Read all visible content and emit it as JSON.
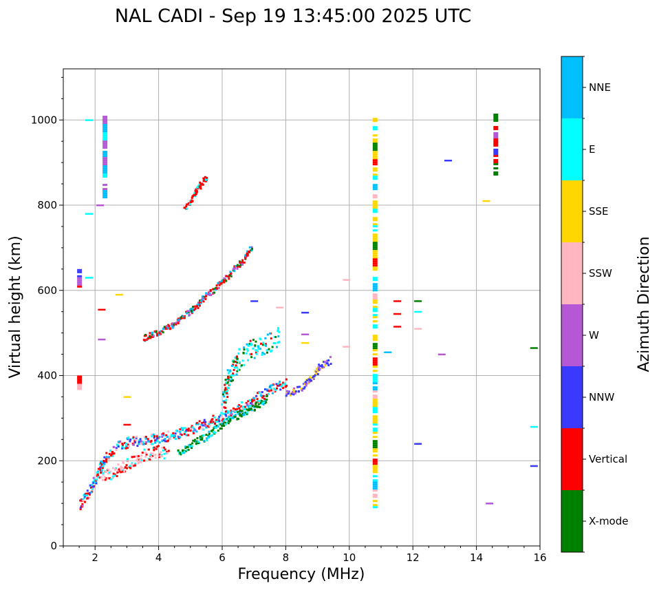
{
  "chart_data": {
    "type": "scatter",
    "title": "NAL CADI - Sep 19 13:45:00 2025 UTC",
    "xlabel": "Frequency (MHz)",
    "ylabel": "Virtual height (km)",
    "xlim": [
      1,
      16
    ],
    "ylim": [
      0,
      1120
    ],
    "grid": true,
    "x_ticks": [
      2,
      4,
      6,
      8,
      10,
      12,
      14,
      16
    ],
    "x_tick_labels": [
      "2",
      "4",
      "6",
      "8",
      "10",
      "12",
      "14",
      "16"
    ],
    "x_minor_step": 0.5,
    "y_ticks": [
      0,
      200,
      400,
      600,
      800,
      1000
    ],
    "y_tick_labels": [
      "0",
      "200",
      "400",
      "600",
      "800",
      "1000"
    ],
    "y_minor_step": 50,
    "colorbar": {
      "title": "Azimuth Direction",
      "categories": [
        {
          "name": "X-mode",
          "color": "#008000"
        },
        {
          "name": "Vertical",
          "color": "#ff0000"
        },
        {
          "name": "NNW",
          "color": "#3a3aff"
        },
        {
          "name": "W",
          "color": "#b458d6"
        },
        {
          "name": "SSW",
          "color": "#ffb6c1"
        },
        {
          "name": "SSE",
          "color": "#ffd700"
        },
        {
          "name": "E",
          "color": "#00ffff"
        },
        {
          "name": "NNE",
          "color": "#00bfff"
        }
      ]
    },
    "traces": [
      {
        "name": "F-layer O-mode trace",
        "kind": "curve",
        "points": [
          [
            1.5,
            100
          ],
          [
            1.6,
            110
          ],
          [
            1.8,
            130
          ],
          [
            2.0,
            160
          ],
          [
            2.2,
            195
          ],
          [
            2.4,
            215
          ],
          [
            2.7,
            235
          ],
          [
            3.0,
            245
          ],
          [
            3.5,
            250
          ],
          [
            4.0,
            255
          ],
          [
            4.5,
            262
          ],
          [
            5.0,
            275
          ],
          [
            5.3,
            285
          ],
          [
            5.6,
            295
          ],
          [
            6.0,
            305
          ],
          [
            6.5,
            325
          ],
          [
            7.0,
            345
          ],
          [
            7.5,
            370
          ],
          [
            8.0,
            385
          ]
        ],
        "colors": [
          "Vertical",
          "NNE",
          "E",
          "SSW",
          "NNW",
          "Vertical",
          "E",
          "Vertical",
          "NNE",
          "Vertical",
          "NNW",
          "W"
        ],
        "spread": 14
      },
      {
        "name": "F-layer X-mode trace",
        "kind": "curve",
        "points": [
          [
            4.6,
            220
          ],
          [
            5.0,
            240
          ],
          [
            5.5,
            260
          ],
          [
            6.0,
            290
          ],
          [
            6.5,
            310
          ],
          [
            7.0,
            330
          ],
          [
            7.4,
            350
          ]
        ],
        "colors": [
          "X-mode",
          "X-mode",
          "E",
          "X-mode",
          "NNE"
        ],
        "spread": 10
      },
      {
        "name": "Lower F echoes",
        "kind": "curve",
        "points": [
          [
            2.2,
            165
          ],
          [
            2.6,
            175
          ],
          [
            3.0,
            195
          ],
          [
            3.5,
            215
          ],
          [
            4.0,
            225
          ],
          [
            4.3,
            220
          ]
        ],
        "colors": [
          "SSW",
          "Vertical",
          "SSW",
          "Vertical",
          "E"
        ],
        "spread": 18
      },
      {
        "name": "Multi-hop trace",
        "kind": "curve",
        "points": [
          [
            3.5,
            490
          ],
          [
            4.0,
            505
          ],
          [
            4.5,
            525
          ],
          [
            5.0,
            555
          ],
          [
            5.5,
            590
          ],
          [
            5.8,
            610
          ],
          [
            6.0,
            625
          ],
          [
            6.5,
            660
          ],
          [
            6.8,
            690
          ],
          [
            6.9,
            705
          ]
        ],
        "colors": [
          "Vertical",
          "W",
          "Vertical",
          "NNE",
          "X-mode"
        ],
        "spread": 8
      },
      {
        "name": "Rising scatter",
        "kind": "curve",
        "points": [
          [
            6.0,
            340
          ],
          [
            6.2,
            400
          ],
          [
            6.5,
            440
          ],
          [
            7.0,
            470
          ],
          [
            7.5,
            480
          ],
          [
            7.8,
            500
          ]
        ],
        "colors": [
          "NNE",
          "E",
          "Vertical",
          "X-mode",
          "E"
        ],
        "spread": 30
      },
      {
        "name": "Upper echo trace",
        "kind": "curve",
        "points": [
          [
            4.8,
            795
          ],
          [
            5.0,
            810
          ],
          [
            5.2,
            840
          ],
          [
            5.5,
            870
          ]
        ],
        "colors": [
          "Vertical",
          "E",
          "Vertical"
        ],
        "spread": 6
      },
      {
        "name": "High-frequency tail",
        "kind": "curve",
        "points": [
          [
            8.0,
            360
          ],
          [
            8.5,
            375
          ],
          [
            8.8,
            395
          ],
          [
            9.0,
            420
          ],
          [
            9.4,
            440
          ]
        ],
        "colors": [
          "SSE",
          "W",
          "NNW",
          "NNW"
        ],
        "spread": 10
      },
      {
        "name": "10.8 MHz interference column",
        "kind": "column",
        "x": 10.8,
        "ymin": 90,
        "ymax": 1005,
        "colors": [
          "SSE",
          "E",
          "SSE",
          "X-mode",
          "SSE",
          "Vertical",
          "SSE",
          "E",
          "NNE",
          "SSW",
          "SSE",
          "E"
        ]
      },
      {
        "name": "14.6 MHz interference column",
        "kind": "column",
        "x": 14.6,
        "ymin": 870,
        "ymax": 1015,
        "colors": [
          "X-mode",
          "Vertical",
          "W",
          "Vertical",
          "NNW",
          "Vertical",
          "X-mode"
        ]
      },
      {
        "name": "2.3 MHz spread column",
        "kind": "column",
        "x": 2.3,
        "ymin": 820,
        "ymax": 1010,
        "colors": [
          "W",
          "NNE",
          "E",
          "W",
          "NNE"
        ]
      },
      {
        "name": "1.5 MHz low echoes",
        "kind": "column",
        "x": 1.5,
        "ymin": 370,
        "ymax": 400,
        "colors": [
          "Vertical",
          "SSW",
          "NNW"
        ]
      },
      {
        "name": "1.5 MHz high echoes",
        "kind": "column",
        "x": 1.5,
        "ymin": 605,
        "ymax": 650,
        "colors": [
          "NNW",
          "W",
          "Vertical"
        ]
      }
    ],
    "isolated_points": [
      {
        "x": 13.1,
        "y": 905,
        "color": "NNW"
      },
      {
        "x": 14.3,
        "y": 810,
        "color": "SSE"
      },
      {
        "x": 14.4,
        "y": 100,
        "color": "W"
      },
      {
        "x": 12.9,
        "y": 450,
        "color": "W"
      },
      {
        "x": 11.5,
        "y": 575,
        "color": "Vertical"
      },
      {
        "x": 11.5,
        "y": 545,
        "color": "Vertical"
      },
      {
        "x": 11.5,
        "y": 515,
        "color": "Vertical"
      },
      {
        "x": 12.15,
        "y": 575,
        "color": "X-mode"
      },
      {
        "x": 12.15,
        "y": 550,
        "color": "E"
      },
      {
        "x": 12.15,
        "y": 510,
        "color": "SSW"
      },
      {
        "x": 12.15,
        "y": 240,
        "color": "NNW"
      },
      {
        "x": 15.8,
        "y": 465,
        "color": "X-mode"
      },
      {
        "x": 15.8,
        "y": 280,
        "color": "E"
      },
      {
        "x": 15.8,
        "y": 188,
        "color": "NNW"
      },
      {
        "x": 11.2,
        "y": 455,
        "color": "NNE"
      },
      {
        "x": 9.9,
        "y": 625,
        "color": "SSW"
      },
      {
        "x": 9.9,
        "y": 468,
        "color": "SSW"
      },
      {
        "x": 8.6,
        "y": 548,
        "color": "NNW"
      },
      {
        "x": 8.6,
        "y": 497,
        "color": "W"
      },
      {
        "x": 8.6,
        "y": 477,
        "color": "SSE"
      },
      {
        "x": 1.8,
        "y": 630,
        "color": "E"
      },
      {
        "x": 1.8,
        "y": 780,
        "color": "E"
      },
      {
        "x": 1.8,
        "y": 1000,
        "color": "E"
      },
      {
        "x": 2.15,
        "y": 800,
        "color": "W"
      },
      {
        "x": 2.2,
        "y": 555,
        "color": "Vertical"
      },
      {
        "x": 2.2,
        "y": 485,
        "color": "W"
      },
      {
        "x": 2.75,
        "y": 590,
        "color": "SSE"
      },
      {
        "x": 3.0,
        "y": 350,
        "color": "SSE"
      },
      {
        "x": 3.0,
        "y": 285,
        "color": "Vertical"
      },
      {
        "x": 7.8,
        "y": 560,
        "color": "SSW"
      },
      {
        "x": 7.0,
        "y": 575,
        "color": "NNW"
      }
    ]
  }
}
